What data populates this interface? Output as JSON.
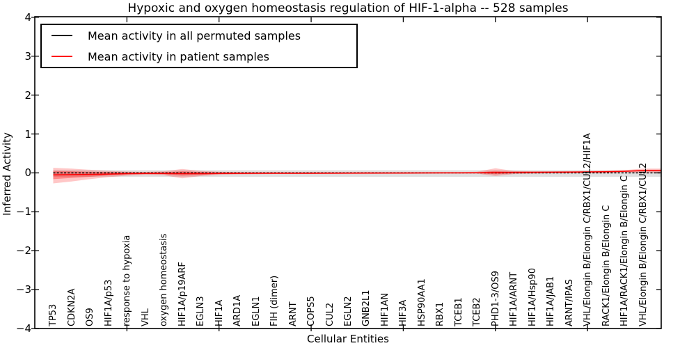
{
  "title": "Hypoxic and oxygen homeostasis regulation of HIF-1-alpha -- 528 samples",
  "legend": {
    "items": [
      {
        "label": "Mean activity in all permuted samples",
        "color": "#000000"
      },
      {
        "label": "Mean activity in patient samples",
        "color": "#ff0000"
      }
    ]
  },
  "chart_data": {
    "type": "line",
    "title": "Hypoxic and oxygen homeostasis regulation of HIF-1-alpha -- 528 samples",
    "xlabel": "Cellular Entities",
    "ylabel": "Inferred Activity",
    "ylim": [
      -4,
      4
    ],
    "yticks": [
      4,
      3,
      2,
      1,
      0,
      -1,
      -2,
      -3,
      -4
    ],
    "grid": false,
    "legend_position": "upper left",
    "categories": [
      "TP53",
      "CDKN2A",
      "OS9",
      "HIF1A/p53",
      "response to hypoxia",
      "VHL",
      "oxygen homeostasis",
      "HIF1A/p19ARF",
      "EGLN3",
      "HIF1A",
      "ARD1A",
      "EGLN1",
      "FIH (dimer)",
      "ARNT",
      "COPS5",
      "CUL2",
      "EGLN2",
      "GNB2L1",
      "HIF1AN",
      "HIF3A",
      "HSP90AA1",
      "RBX1",
      "TCEB1",
      "TCEB2",
      "PHD1-3/OS9",
      "HIF1A/ARNT",
      "HIF1A/Hsp90",
      "HIF1A/JAB1",
      "ARNT/IPAS",
      "VHL/Elongin B/Elongin C/RBX1/CUL2/HIF1A",
      "RACK1/Elongin B/Elongin C",
      "HIF1A/RACK1/Elongin B/Elongin C",
      "VHL/Elongin B/Elongin C/RBX1/CUL2"
    ],
    "series": [
      {
        "name": "Mean activity in all permuted samples",
        "color": "#000000",
        "style": "dashed",
        "values": [
          0,
          0,
          0,
          0,
          0,
          0,
          0,
          0,
          0,
          0,
          0,
          0,
          0,
          0,
          0,
          0,
          0,
          0,
          0,
          0,
          0,
          0,
          0,
          0,
          0,
          0,
          0,
          0,
          0,
          0,
          0,
          0,
          0
        ]
      },
      {
        "name": "Mean activity in patient samples",
        "color": "#ff0000",
        "style": "solid",
        "values": [
          -0.05,
          -0.045,
          -0.04,
          -0.03,
          -0.02,
          -0.015,
          -0.015,
          -0.02,
          -0.02,
          -0.015,
          -0.012,
          -0.01,
          -0.01,
          -0.01,
          -0.01,
          -0.008,
          -0.006,
          -0.005,
          -0.005,
          -0.003,
          -0.002,
          0,
          0,
          0.003,
          0.01,
          0.015,
          0.015,
          0.018,
          0.02,
          0.025,
          0.03,
          0.04,
          0.06
        ]
      }
    ],
    "bands": {
      "permuted": {
        "color": "#000000",
        "opacity": 0.12,
        "upper": 0.07,
        "lower": -0.1
      },
      "patient_outer": {
        "color": "#ff0000",
        "opacity": 0.22,
        "upper": [
          0.13,
          0.11,
          0.08,
          0.05,
          0.035,
          0.025,
          0.04,
          0.1,
          0.05,
          0.03,
          0.02,
          0.02,
          0.02,
          0.02,
          0.02,
          0.02,
          0.02,
          0.02,
          0.02,
          0.02,
          0.02,
          0.02,
          0.02,
          0.03,
          0.12,
          0.05,
          0.04,
          0.04,
          0.045,
          0.05,
          0.06,
          0.07,
          0.11
        ],
        "lower": [
          -0.27,
          -0.22,
          -0.16,
          -0.11,
          -0.07,
          -0.05,
          -0.06,
          -0.14,
          -0.08,
          -0.05,
          -0.04,
          -0.035,
          -0.03,
          -0.03,
          -0.03,
          -0.03,
          -0.03,
          -0.03,
          -0.025,
          -0.025,
          -0.02,
          -0.02,
          -0.02,
          -0.02,
          -0.08,
          -0.03,
          -0.02,
          -0.01,
          -0.005,
          0,
          0.005,
          0.01,
          0
        ]
      },
      "patient_inner": {
        "color": "#ff0000",
        "opacity": 0.32,
        "upper": [
          0.05,
          0.04,
          0.03,
          0.02,
          0.012,
          0.008,
          0.015,
          0.04,
          0.02,
          0.012,
          0.008,
          0.008,
          0.008,
          0.008,
          0.008,
          0.008,
          0.008,
          0.008,
          0.008,
          0.008,
          0.008,
          0.008,
          0.008,
          0.012,
          0.05,
          0.025,
          0.022,
          0.025,
          0.03,
          0.035,
          0.04,
          0.05,
          0.08
        ],
        "lower": [
          -0.16,
          -0.13,
          -0.1,
          -0.065,
          -0.04,
          -0.03,
          -0.035,
          -0.07,
          -0.05,
          -0.03,
          -0.025,
          -0.022,
          -0.02,
          -0.02,
          -0.02,
          -0.02,
          -0.018,
          -0.018,
          -0.016,
          -0.015,
          -0.012,
          -0.012,
          -0.01,
          -0.008,
          -0.035,
          -0.012,
          -0.005,
          0,
          0.005,
          0.012,
          0.018,
          0.028,
          0.04
        ]
      }
    },
    "xticks_major_positions": [
      5,
      10,
      15,
      20,
      25,
      30
    ]
  }
}
